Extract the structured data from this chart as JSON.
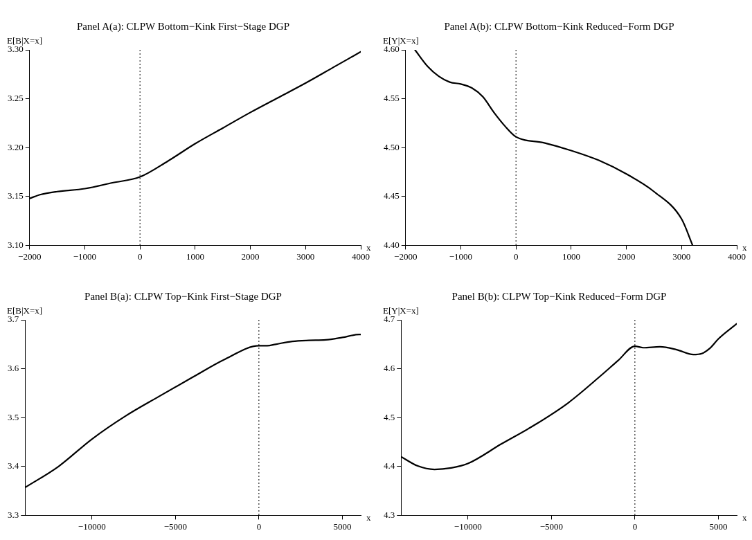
{
  "chart_data": [
    {
      "type": "line",
      "title": "Panel A(a): CLPW Bottom−Kink First−Stage DGP",
      "xlabel": "x",
      "ylabel": "E[B|X=x]",
      "xlim": [
        -2000,
        4000
      ],
      "ylim": [
        3.1,
        3.3
      ],
      "xticks": [
        -2000,
        -1000,
        0,
        1000,
        2000,
        3000,
        4000
      ],
      "yticks": [
        {
          "value": 3.1,
          "label": "3.10"
        },
        3.15,
        {
          "value": 3.2,
          "label": "3.20"
        },
        3.25,
        {
          "value": 3.3,
          "label": "3.30"
        }
      ],
      "grid": false,
      "legend": false,
      "marker": "none",
      "line_style": "solid",
      "x": [
        -2000,
        -1800,
        -1500,
        -1000,
        -500,
        0,
        500,
        1000,
        1500,
        2000,
        2500,
        3000,
        3500,
        4000
      ],
      "series": [
        {
          "color": "#000000",
          "values": [
            3.148,
            3.152,
            3.155,
            3.158,
            3.164,
            3.17,
            3.186,
            3.204,
            3.22,
            3.236,
            3.251,
            3.266,
            3.282,
            3.298
          ]
        }
      ],
      "ref_lines": [
        {
          "axis": "x",
          "value": 0,
          "line_style": "dotted",
          "color": "#000000"
        }
      ]
    },
    {
      "type": "line",
      "title": "Panel A(b): CLPW Bottom−Kink Reduced−Form DGP",
      "xlabel": "x",
      "ylabel": "E[Y|X=x]",
      "xlim": [
        -2000,
        4000
      ],
      "ylim": [
        4.4,
        4.6
      ],
      "xticks": [
        -2000,
        -1000,
        0,
        1000,
        2000,
        3000,
        4000
      ],
      "yticks": [
        {
          "value": 4.4,
          "label": "4.40"
        },
        4.45,
        {
          "value": 4.5,
          "label": "4.50"
        },
        4.55,
        {
          "value": 4.6,
          "label": "4.60"
        }
      ],
      "grid": false,
      "legend": false,
      "marker": "none",
      "line_style": "solid",
      "x": [
        -1830,
        -1600,
        -1400,
        -1200,
        -1000,
        -800,
        -600,
        -400,
        -200,
        0,
        500,
        1000,
        1500,
        2000,
        2500,
        3000,
        3200
      ],
      "series": [
        {
          "color": "#000000",
          "values": [
            4.6,
            4.583,
            4.573,
            4.567,
            4.565,
            4.561,
            4.552,
            4.536,
            4.522,
            4.511,
            4.505,
            4.497,
            4.487,
            4.473,
            4.455,
            4.427,
            4.4
          ]
        }
      ],
      "ref_lines": [
        {
          "axis": "x",
          "value": 0,
          "line_style": "dotted",
          "color": "#000000"
        }
      ]
    },
    {
      "type": "line",
      "title": "Panel B(a): CLPW Top−Kink First−Stage DGP",
      "xlabel": "x",
      "ylabel": "E[B|X=x]",
      "xlim": [
        -14000,
        6100
      ],
      "ylim": [
        3.3,
        3.7
      ],
      "xticks": [
        -10000,
        -5000,
        0,
        5000
      ],
      "yticks": [
        3.3,
        3.4,
        3.5,
        3.6,
        3.7
      ],
      "grid": false,
      "legend": false,
      "marker": "none",
      "line_style": "solid",
      "x": [
        -14000,
        -12000,
        -10000,
        -8000,
        -6000,
        -4000,
        -2000,
        0,
        500,
        1000,
        2000,
        3000,
        4000,
        5000,
        6000,
        6100
      ],
      "series": [
        {
          "color": "#000000",
          "values": [
            3.357,
            3.4,
            3.456,
            3.503,
            3.543,
            3.582,
            3.62,
            3.647,
            3.647,
            3.65,
            3.656,
            3.658,
            3.659,
            3.664,
            3.67,
            3.67
          ]
        }
      ],
      "ref_lines": [
        {
          "axis": "x",
          "value": 0,
          "line_style": "dotted",
          "color": "#000000"
        }
      ]
    },
    {
      "type": "line",
      "title": "Panel B(b): CLPW Top−Kink Reduced−Form DGP",
      "xlabel": "x",
      "ylabel": "E[Y|X=x]",
      "xlim": [
        -14000,
        6100
      ],
      "ylim": [
        4.3,
        4.7
      ],
      "xticks": [
        -10000,
        -5000,
        0,
        5000
      ],
      "yticks": [
        4.3,
        4.4,
        4.5,
        4.6,
        4.7
      ],
      "grid": false,
      "legend": false,
      "marker": "none",
      "line_style": "solid",
      "x": [
        -14000,
        -13000,
        -12000,
        -11000,
        -10000,
        -8000,
        -6000,
        -4000,
        -2000,
        -1000,
        0,
        500,
        1500,
        2500,
        3500,
        4000,
        4500,
        5000,
        6100
      ],
      "series": [
        {
          "color": "#000000",
          "values": [
            4.42,
            4.401,
            4.394,
            4.397,
            4.406,
            4.446,
            4.485,
            4.53,
            4.587,
            4.617,
            4.646,
            4.643,
            4.645,
            4.639,
            4.629,
            4.631,
            4.642,
            4.661,
            4.692
          ]
        }
      ],
      "ref_lines": [
        {
          "axis": "x",
          "value": 0,
          "line_style": "dotted",
          "color": "#000000"
        }
      ]
    }
  ]
}
